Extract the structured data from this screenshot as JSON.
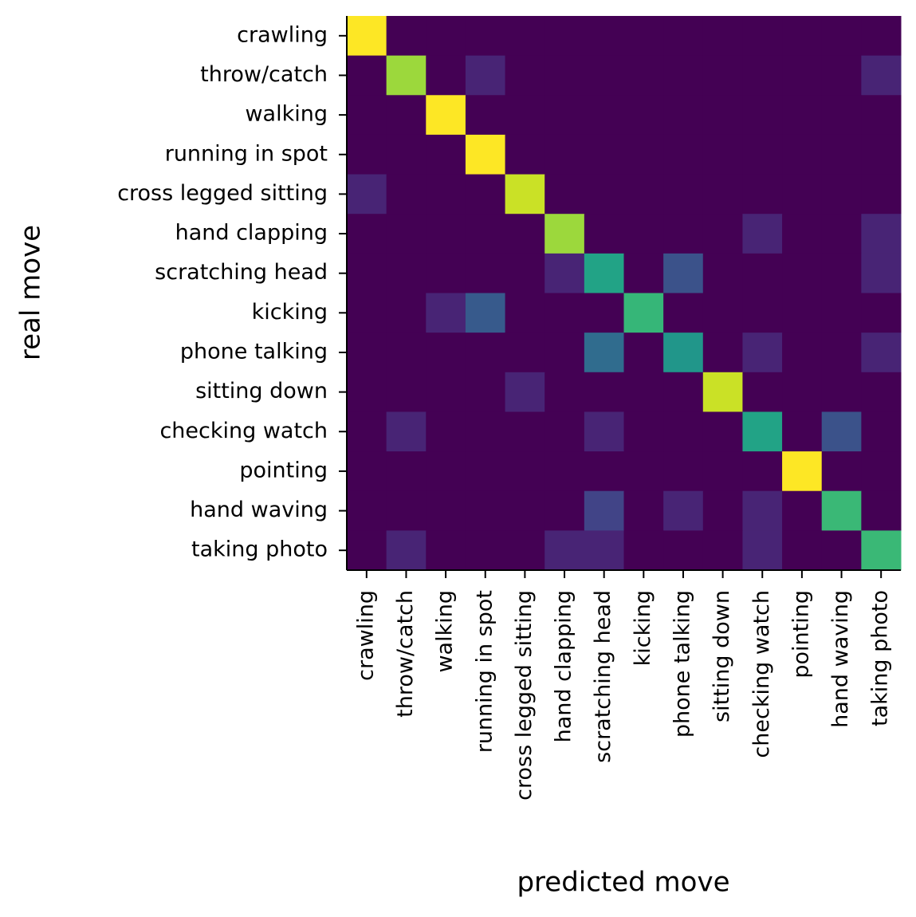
{
  "chart_data": {
    "type": "heatmap",
    "xlabel": "predicted move",
    "ylabel": "real move",
    "categories": [
      "crawling",
      "throw/catch",
      "walking",
      "running in spot",
      "cross legged sitting",
      "hand clapping",
      "scratching head",
      "kicking",
      "phone talking",
      "sitting down",
      "checking watch",
      "pointing",
      "hand waving",
      "taking photo"
    ],
    "y_categories": [
      "crawling",
      "throw/catch",
      "walking",
      "running in spot",
      "cross legged sitting",
      "hand clapping",
      "scratching head",
      "kicking",
      "phone talking",
      "sitting down",
      "checking watch",
      "pointing",
      "hand waving",
      "taking photo"
    ],
    "colormap": "viridis",
    "clim": [
      0,
      1
    ],
    "values": [
      [
        1,
        0,
        0,
        0,
        0,
        0,
        0,
        0,
        0,
        0,
        0,
        0,
        0,
        0
      ],
      [
        0,
        0.85,
        0,
        0.1,
        0,
        0,
        0,
        0,
        0,
        0,
        0,
        0,
        0,
        0.1
      ],
      [
        0,
        0,
        1,
        0,
        0,
        0,
        0,
        0,
        0,
        0,
        0,
        0,
        0,
        0
      ],
      [
        0,
        0,
        0,
        1,
        0,
        0,
        0,
        0,
        0,
        0,
        0,
        0,
        0,
        0
      ],
      [
        0.1,
        0,
        0,
        0,
        0.92,
        0,
        0,
        0,
        0,
        0,
        0,
        0,
        0,
        0
      ],
      [
        0,
        0,
        0,
        0,
        0,
        0.85,
        0,
        0,
        0,
        0,
        0.1,
        0,
        0,
        0.1
      ],
      [
        0,
        0,
        0,
        0,
        0,
        0.1,
        0.58,
        0,
        0.25,
        0,
        0,
        0,
        0,
        0.1
      ],
      [
        0,
        0,
        0.1,
        0.28,
        0,
        0,
        0,
        0.66,
        0,
        0,
        0,
        0,
        0,
        0
      ],
      [
        0,
        0,
        0,
        0,
        0,
        0,
        0.35,
        0,
        0.52,
        0,
        0.1,
        0,
        0,
        0.1
      ],
      [
        0,
        0,
        0,
        0,
        0.1,
        0,
        0,
        0,
        0,
        0.92,
        0,
        0,
        0,
        0
      ],
      [
        0,
        0.1,
        0,
        0,
        0,
        0,
        0.1,
        0,
        0,
        0,
        0.58,
        0,
        0.25,
        0
      ],
      [
        0,
        0,
        0,
        0,
        0,
        0,
        0,
        0,
        0,
        0,
        0,
        1,
        0,
        0
      ],
      [
        0,
        0,
        0,
        0,
        0,
        0,
        0.2,
        0,
        0.1,
        0,
        0.1,
        0,
        0.67,
        0
      ],
      [
        0,
        0.1,
        0,
        0,
        0,
        0.1,
        0.1,
        0,
        0,
        0,
        0.1,
        0,
        0,
        0.67
      ]
    ]
  }
}
